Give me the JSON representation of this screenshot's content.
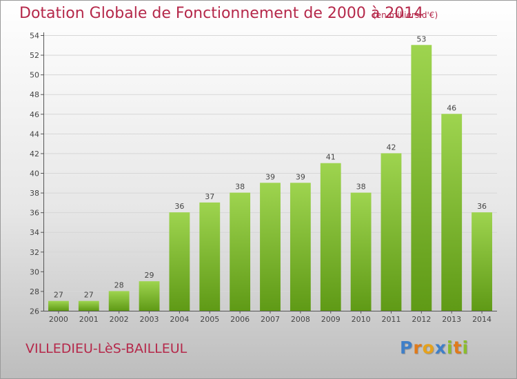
{
  "chart_data": {
    "type": "bar",
    "title": "Dotation Globale de Fonctionnement de 2000 à 2014",
    "subtitle": "(en milliers d'€)",
    "categories": [
      "2000",
      "2001",
      "2002",
      "2003",
      "2004",
      "2005",
      "2006",
      "2007",
      "2008",
      "2009",
      "2010",
      "2011",
      "2012",
      "2013",
      "2014"
    ],
    "values": [
      27,
      27,
      28,
      29,
      36,
      37,
      38,
      39,
      39,
      41,
      38,
      42,
      53,
      46,
      36
    ],
    "ylim": [
      26,
      54
    ],
    "yticks": [
      26,
      28,
      30,
      32,
      34,
      36,
      38,
      40,
      42,
      44,
      46,
      48,
      50,
      52,
      54
    ],
    "grid": true,
    "colors": {
      "bar_top": "#9ed44f",
      "bar_bottom": "#5f9a16",
      "title": "#b5284a"
    }
  },
  "footer": {
    "commune": "VILLEDIEU-LèS-BAILLEUL"
  },
  "logo": {
    "text": "Proxiti",
    "letters": [
      {
        "ch": "P",
        "color": "#3f7fc8"
      },
      {
        "ch": "r",
        "color": "#e07a1a"
      },
      {
        "ch": "o",
        "color": "#e6a21c"
      },
      {
        "ch": "x",
        "color": "#3f7fc8"
      },
      {
        "ch": "i",
        "color": "#8bbd2b"
      },
      {
        "ch": "t",
        "color": "#e07a1a"
      },
      {
        "ch": "i",
        "color": "#8bbd2b"
      }
    ]
  }
}
